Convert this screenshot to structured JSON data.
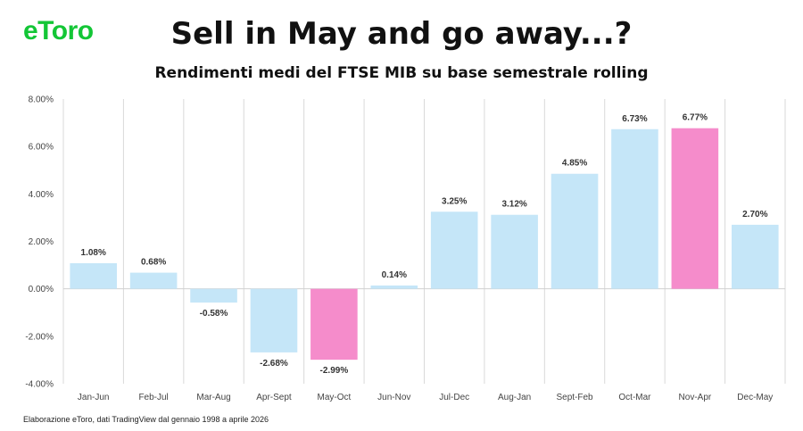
{
  "brand": {
    "logo_text": "eToro",
    "color": "#13c636"
  },
  "header": {
    "title": "Sell in May and go away...?",
    "subtitle": "Rendimenti medi del FTSE MIB su base semestrale rolling"
  },
  "footnote": "Elaborazione eToro, dati TradingView dal gennaio 1998 a aprile 2026",
  "colors": {
    "default_bar": "#c5e6f8",
    "highlight_bar": "#f58ccb"
  },
  "chart_data": {
    "type": "bar",
    "categories": [
      "Jan-Jun",
      "Feb-Jul",
      "Mar-Aug",
      "Apr-Sept",
      "May-Oct",
      "Jun-Nov",
      "Jul-Dec",
      "Aug-Jan",
      "Sept-Feb",
      "Oct-Mar",
      "Nov-Apr",
      "Dec-May"
    ],
    "values": [
      1.08,
      0.68,
      -0.58,
      -2.68,
      -2.99,
      0.14,
      3.25,
      3.12,
      4.85,
      6.73,
      6.77,
      2.7
    ],
    "value_labels": [
      "1.08%",
      "0.68%",
      "-0.58%",
      "-2.68%",
      "-2.99%",
      "0.14%",
      "3.25%",
      "3.12%",
      "4.85%",
      "6.73%",
      "6.77%",
      "2.70%"
    ],
    "highlighted": [
      "May-Oct",
      "Nov-Apr"
    ],
    "ylim": [
      -4,
      8
    ],
    "yticks": [
      -4,
      -2,
      0,
      2,
      4,
      6,
      8
    ],
    "ytick_labels": [
      "-4.00%",
      "-2.00%",
      "0.00%",
      "2.00%",
      "4.00%",
      "6.00%",
      "8.00%"
    ],
    "grid": "vertical",
    "xlabel": "",
    "ylabel": ""
  }
}
